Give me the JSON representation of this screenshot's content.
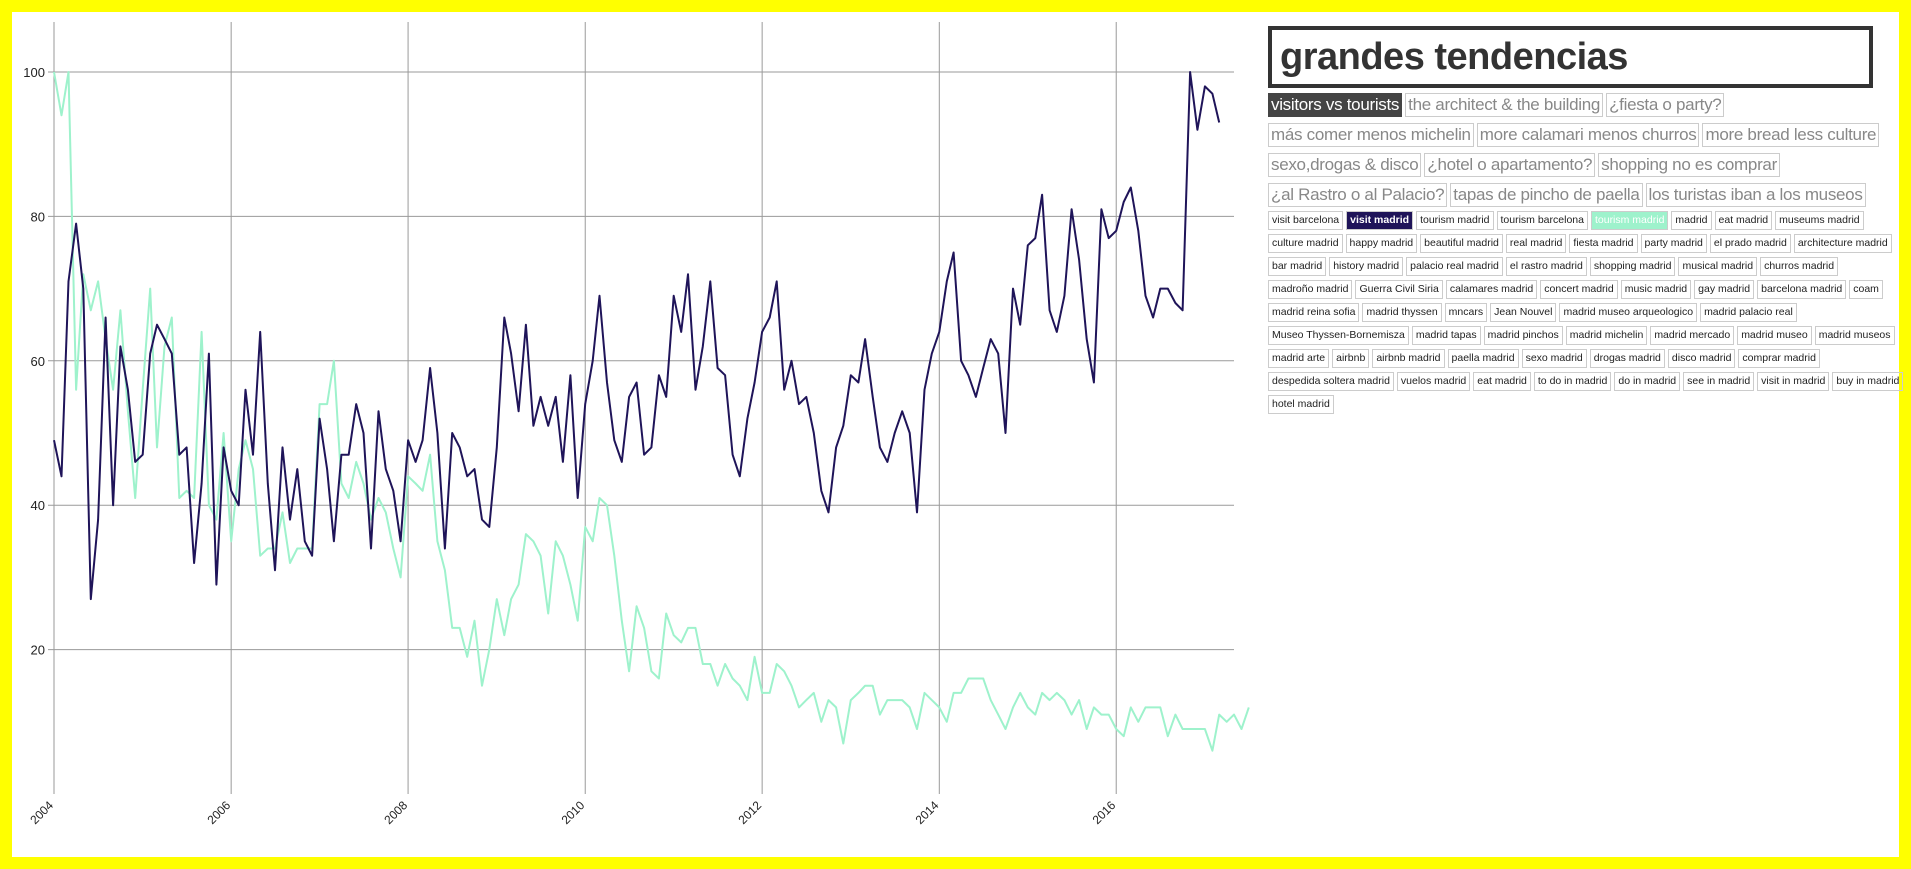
{
  "title": "grandes tendencias",
  "topics": [
    {
      "label": "visitors vs tourists",
      "active": true
    },
    {
      "label": "the architect & the building",
      "active": false
    },
    {
      "label": "¿fiesta o party?",
      "active": false
    },
    {
      "label": "más comer menos michelin",
      "active": false
    },
    {
      "label": "more calamari menos churros",
      "active": false
    },
    {
      "label": "more bread less culture",
      "active": false
    },
    {
      "label": "sexo,drogas & disco",
      "active": false
    },
    {
      "label": "¿hotel o apartamento?",
      "active": false
    },
    {
      "label": "shopping no es comprar",
      "active": false
    },
    {
      "label": "¿al Rastro o al Palacio?",
      "active": false
    },
    {
      "label": "tapas de pincho de paella",
      "active": false
    },
    {
      "label": "los turistas iban a los museos",
      "active": false
    }
  ],
  "terms": [
    {
      "label": "visit barcelona",
      "selected": ""
    },
    {
      "label": "visit madrid",
      "selected": "navy"
    },
    {
      "label": "tourism madrid",
      "selected": ""
    },
    {
      "label": "tourism barcelona",
      "selected": ""
    },
    {
      "label": "tourism madrid",
      "selected": "mint"
    },
    {
      "label": "madrid",
      "selected": ""
    },
    {
      "label": "eat madrid",
      "selected": ""
    },
    {
      "label": "museums madrid",
      "selected": ""
    },
    {
      "label": "culture madrid",
      "selected": ""
    },
    {
      "label": "happy madrid",
      "selected": ""
    },
    {
      "label": "beautiful madrid",
      "selected": ""
    },
    {
      "label": "real madrid",
      "selected": ""
    },
    {
      "label": "fiesta madrid",
      "selected": ""
    },
    {
      "label": "party madrid",
      "selected": ""
    },
    {
      "label": "el prado madrid",
      "selected": ""
    },
    {
      "label": "architecture madrid",
      "selected": ""
    },
    {
      "label": "bar madrid",
      "selected": ""
    },
    {
      "label": "history madrid",
      "selected": ""
    },
    {
      "label": "palacio real madrid",
      "selected": ""
    },
    {
      "label": "el rastro madrid",
      "selected": ""
    },
    {
      "label": "shopping madrid",
      "selected": ""
    },
    {
      "label": "musical madrid",
      "selected": ""
    },
    {
      "label": "churros madrid",
      "selected": ""
    },
    {
      "label": "madroño madrid",
      "selected": ""
    },
    {
      "label": "Guerra Civil Siria",
      "selected": ""
    },
    {
      "label": "calamares madrid",
      "selected": ""
    },
    {
      "label": "concert madrid",
      "selected": ""
    },
    {
      "label": "music madrid",
      "selected": ""
    },
    {
      "label": "gay madrid",
      "selected": ""
    },
    {
      "label": "barcelona madrid",
      "selected": ""
    },
    {
      "label": "coam",
      "selected": ""
    },
    {
      "label": "madrid reina sofia",
      "selected": ""
    },
    {
      "label": "madrid thyssen",
      "selected": ""
    },
    {
      "label": "mncars",
      "selected": ""
    },
    {
      "label": "Jean Nouvel",
      "selected": ""
    },
    {
      "label": "madrid museo arqueologico",
      "selected": ""
    },
    {
      "label": "madrid palacio real",
      "selected": ""
    },
    {
      "label": "Museo Thyssen-Bornemisza",
      "selected": ""
    },
    {
      "label": "madrid tapas",
      "selected": ""
    },
    {
      "label": "madrid pinchos",
      "selected": ""
    },
    {
      "label": "madrid michelin",
      "selected": ""
    },
    {
      "label": "madrid mercado",
      "selected": ""
    },
    {
      "label": "madrid museo",
      "selected": ""
    },
    {
      "label": "madrid museos",
      "selected": ""
    },
    {
      "label": "madrid arte",
      "selected": ""
    },
    {
      "label": "airbnb",
      "selected": ""
    },
    {
      "label": "airbnb madrid",
      "selected": ""
    },
    {
      "label": "paella madrid",
      "selected": ""
    },
    {
      "label": "sexo madrid",
      "selected": ""
    },
    {
      "label": "drogas madrid",
      "selected": ""
    },
    {
      "label": "disco madrid",
      "selected": ""
    },
    {
      "label": "comprar madrid",
      "selected": ""
    },
    {
      "label": "despedida soltera madrid",
      "selected": ""
    },
    {
      "label": "vuelos madrid",
      "selected": ""
    },
    {
      "label": "eat madrid",
      "selected": ""
    },
    {
      "label": "to do in madrid",
      "selected": ""
    },
    {
      "label": "do in madrid",
      "selected": ""
    },
    {
      "label": "see in madrid",
      "selected": ""
    },
    {
      "label": "visit in madrid",
      "selected": ""
    },
    {
      "label": "buy in madrid",
      "selected": ""
    },
    {
      "label": "hotel madrid",
      "selected": ""
    }
  ],
  "colors": {
    "frame": "#ffff00",
    "visit_madrid": "#1f1459",
    "tourism_madrid": "#9ef2cc",
    "grid": "#9a9a9a"
  },
  "chart_data": {
    "type": "line",
    "title": "",
    "xlabel": "",
    "ylabel": "",
    "x_start": "2004-01",
    "x_step": "month",
    "xlim": [
      "2004-01",
      "2017-05"
    ],
    "ylim": [
      0,
      100
    ],
    "x_ticks": [
      "2004",
      "2006",
      "2008",
      "2010",
      "2012",
      "2014",
      "2016"
    ],
    "y_ticks": [
      20,
      40,
      60,
      80,
      100
    ],
    "grid": true,
    "series": [
      {
        "color": "#1f1459",
        "values": [
          49,
          44,
          71,
          79,
          70,
          27,
          38,
          66,
          40,
          62,
          56,
          46,
          47,
          61,
          65,
          63,
          61,
          47,
          48,
          32,
          43,
          61,
          29,
          48,
          42,
          40,
          56,
          47,
          64,
          43,
          31,
          48,
          38,
          45,
          35,
          33,
          52,
          45,
          35,
          47,
          47,
          54,
          50,
          34,
          53,
          45,
          42,
          35,
          49,
          46,
          49,
          59,
          50,
          34,
          50,
          48,
          44,
          45,
          38,
          37,
          48,
          66,
          61,
          53,
          65,
          51,
          55,
          51,
          55,
          46,
          58,
          41,
          54,
          60,
          69,
          57,
          49,
          46,
          55,
          57,
          47,
          48,
          58,
          55,
          69,
          64,
          72,
          56,
          62,
          71,
          59,
          58,
          47,
          44,
          52,
          57,
          64,
          66,
          71,
          56,
          60,
          54,
          55,
          50,
          42,
          39,
          48,
          51,
          58,
          57,
          63,
          55,
          48,
          46,
          50,
          53,
          50,
          39,
          56,
          61,
          64,
          71,
          75,
          60,
          58,
          55,
          59,
          63,
          61,
          50,
          70,
          65,
          76,
          77,
          83,
          67,
          64,
          69,
          81,
          74,
          63,
          57,
          81,
          77,
          78,
          82,
          84,
          78,
          69,
          66,
          70,
          70,
          68,
          67,
          100,
          92,
          98,
          97,
          93
        ]
      },
      {
        "color": "#9ef2cc",
        "values": [
          100,
          94,
          100,
          56,
          72,
          67,
          71,
          63,
          56,
          67,
          53,
          41,
          56,
          70,
          48,
          62,
          66,
          41,
          42,
          41,
          64,
          40,
          38,
          50,
          35,
          45,
          49,
          45,
          33,
          34,
          34,
          39,
          32,
          34,
          34,
          34,
          54,
          54,
          60,
          43,
          41,
          46,
          43,
          38,
          41,
          39,
          34,
          30,
          44,
          43,
          42,
          47,
          35,
          31,
          23,
          23,
          19,
          24,
          15,
          20,
          27,
          22,
          27,
          29,
          36,
          35,
          33,
          25,
          35,
          33,
          29,
          24,
          37,
          35,
          41,
          40,
          33,
          24,
          17,
          26,
          23,
          17,
          16,
          25,
          22,
          21,
          23,
          23,
          18,
          18,
          15,
          18,
          16,
          15,
          13,
          19,
          14,
          14,
          18,
          17,
          15,
          12,
          13,
          14,
          10,
          13,
          12,
          7,
          13,
          14,
          15,
          15,
          11,
          13,
          13,
          13,
          12,
          9,
          14,
          13,
          12,
          10,
          14,
          14,
          16,
          16,
          16,
          13,
          11,
          9,
          12,
          14,
          12,
          11,
          14,
          13,
          14,
          13,
          11,
          13,
          9,
          12,
          11,
          11,
          9,
          8,
          12,
          10,
          12,
          12,
          12,
          8,
          11,
          9,
          9,
          9,
          9,
          6,
          11,
          10,
          11,
          9,
          12
        ]
      }
    ]
  }
}
